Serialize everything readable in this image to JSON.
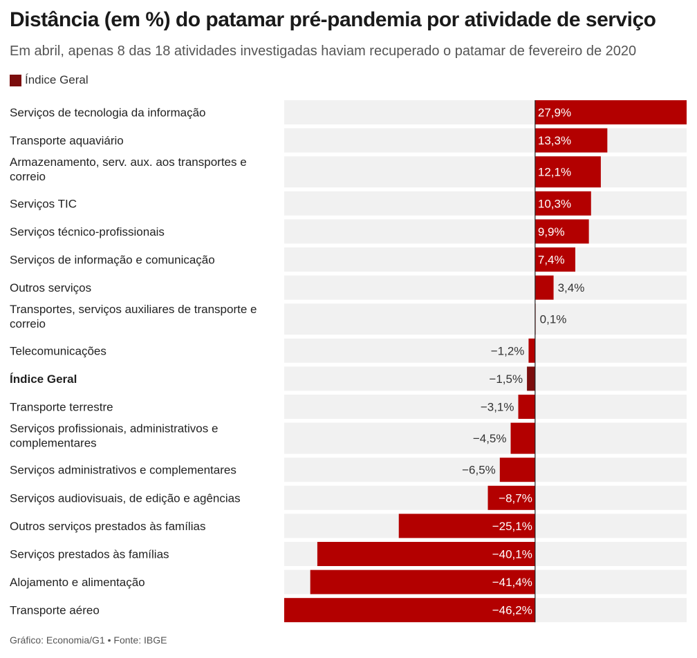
{
  "title": "Distância (em %) do patamar pré-pandemia por atividade de serviço",
  "subtitle": "Em abril, apenas 8 das 18 atividades investigadas haviam recuperado o patamar de fevereiro de 2020",
  "legend": {
    "label": "Índice Geral",
    "color": "#7b0d0d"
  },
  "footer": "Gráfico: Economia/G1 • Fonte: IBGE",
  "colors": {
    "bar": "#b30000",
    "highlight": "#7b0d0d",
    "track": "#f1f1f1",
    "axis": "#222222"
  },
  "chart_data": {
    "type": "bar",
    "orientation": "horizontal",
    "title": "Distância (em %) do patamar pré-pandemia por atividade de serviço",
    "xlabel": "",
    "ylabel": "",
    "xlim": [
      -46.2,
      27.9
    ],
    "grid": false,
    "legend": "top-left",
    "categories": [
      [
        "Serviços de tecnologia da informação"
      ],
      [
        "Transporte aquaviário"
      ],
      [
        "Armazenamento, serv. aux. aos transportes e",
        "correio"
      ],
      [
        "Serviços TIC"
      ],
      [
        "Serviços técnico-profissionais"
      ],
      [
        "Serviços de informação e comunicação"
      ],
      [
        "Outros serviços"
      ],
      [
        "Transportes, serviços auxiliares de transporte e",
        "correio"
      ],
      [
        "Telecomunicações"
      ],
      [
        "Índice Geral"
      ],
      [
        "Transporte terrestre"
      ],
      [
        "Serviços profissionais, administrativos e",
        "complementares"
      ],
      [
        "Serviços administrativos e complementares"
      ],
      [
        "Serviços audiovisuais, de edição e agências"
      ],
      [
        "Outros serviços prestados às famílias"
      ],
      [
        "Serviços prestados às famílias"
      ],
      [
        "Alojamento e alimentação"
      ],
      [
        "Transporte aéreo"
      ]
    ],
    "values": [
      27.9,
      13.3,
      12.1,
      10.3,
      9.9,
      7.4,
      3.4,
      0.1,
      -1.2,
      -1.5,
      -3.1,
      -4.5,
      -6.5,
      -8.7,
      -25.1,
      -40.1,
      -41.4,
      -46.2
    ],
    "labels": [
      "27,9%",
      "13,3%",
      "12,1%",
      "10,3%",
      "9,9%",
      "7,4%",
      "3,4%",
      "0,1%",
      "−1,2%",
      "−1,5%",
      "−3,1%",
      "−4,5%",
      "−6,5%",
      "−8,7%",
      "−25,1%",
      "−40,1%",
      "−41,4%",
      "−46,2%"
    ],
    "highlight": [
      "Índice Geral"
    ]
  }
}
